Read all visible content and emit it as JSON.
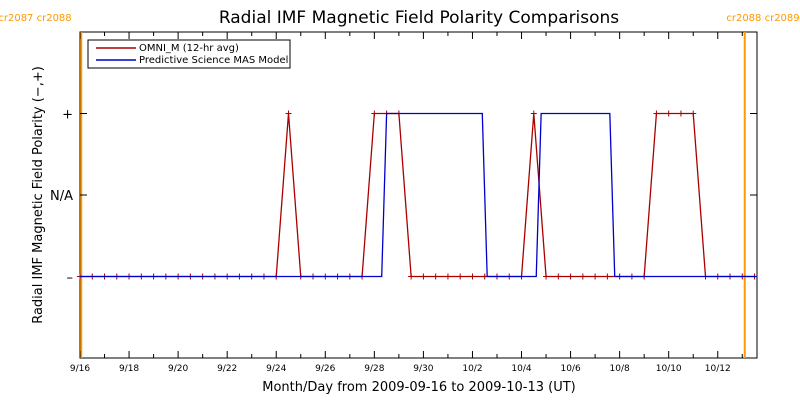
{
  "chart_data": {
    "type": "line",
    "title": "Radial IMF Magnetic Field Polarity Comparisons",
    "xlabel": "Month/Day from 2009-09-16 to 2009-10-13 (UT)",
    "ylabel": "Radial IMF Magnetic Field Polarity (−,+)",
    "x_tick_labels": [
      "9/16",
      "9/18",
      "9/20",
      "9/22",
      "9/24",
      "9/26",
      "9/28",
      "9/30",
      "10/2",
      "10/4",
      "10/6",
      "10/8",
      "10/10",
      "10/12"
    ],
    "y_tick_labels": [
      {
        "label": "+",
        "value": 1
      },
      {
        "label": "N/A",
        "value": 0
      },
      {
        "label": "–",
        "value": -1
      }
    ],
    "xlim_days": [
      0,
      27.6
    ],
    "ylim": [
      -2,
      2
    ],
    "legend_position": "top-left",
    "carrington_markers": {
      "color": "#ff9900",
      "lines": [
        {
          "day": 0.05,
          "label": "cr2087 cr2088",
          "side": "left"
        },
        {
          "day": 27.1,
          "label": "cr2088 cr2089",
          "side": "right"
        }
      ]
    },
    "series": [
      {
        "name": "OMNI_M (12-hr avg)",
        "color": "#aa0000",
        "markers": true,
        "x": [
          0,
          0.5,
          1,
          1.5,
          2,
          2.5,
          3,
          3.5,
          4,
          4.5,
          5,
          5.5,
          6,
          6.5,
          7,
          7.5,
          8,
          8.5,
          9,
          9.5,
          10,
          10.5,
          11,
          11.5,
          12,
          12.5,
          13,
          13.5,
          14,
          14.5,
          15,
          15.5,
          16,
          16.5,
          17,
          17.5,
          18,
          18.5,
          19,
          19.5,
          20,
          20.5,
          21,
          21.5,
          22,
          22.5,
          23,
          23.5,
          24,
          24.5,
          25,
          25.5,
          26,
          26.5,
          27,
          27.5
        ],
        "values": [
          -1,
          -1,
          -1,
          -1,
          -1,
          -1,
          -1,
          -1,
          -1,
          -1,
          -1,
          -1,
          -1,
          -1,
          -1,
          -1,
          -1,
          1,
          -1,
          -1,
          -1,
          -1,
          -1,
          -1,
          1,
          1,
          1,
          -1,
          -1,
          -1,
          -1,
          -1,
          -1,
          -1,
          -1,
          -1,
          -1,
          1,
          -1,
          -1,
          -1,
          -1,
          -1,
          -1,
          -1,
          -1,
          -1,
          1,
          1,
          1,
          1,
          -1,
          -1,
          -1,
          -1,
          -1
        ]
      },
      {
        "name": "Predictive Science MAS Model",
        "color": "#0000cc",
        "markers": false,
        "x": [
          0,
          12.3,
          12.5,
          16.4,
          16.6,
          18.6,
          18.8,
          21.6,
          21.8,
          27.6
        ],
        "values": [
          -1,
          -1,
          1,
          1,
          -1,
          -1,
          1,
          1,
          -1,
          -1
        ]
      }
    ]
  }
}
